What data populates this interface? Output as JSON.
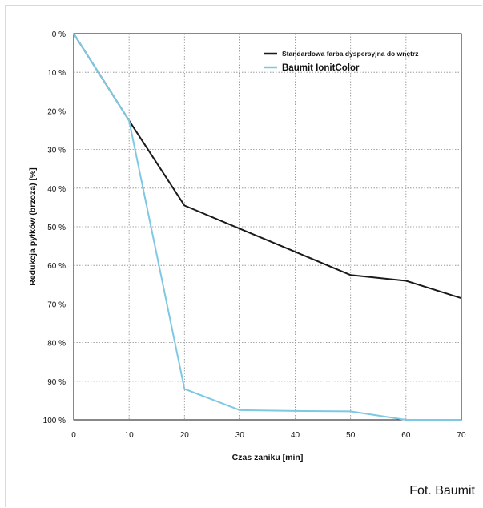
{
  "chart_data": {
    "type": "line",
    "title": "",
    "xlabel": "Czas zaniku [min]",
    "ylabel": "Redukcja pyłków (brzoza) [%]",
    "x_ticks": [
      "0",
      "10",
      "20",
      "30",
      "40",
      "50",
      "60",
      "70"
    ],
    "y_ticks": [
      "0 %",
      "10 %",
      "20 %",
      "30 %",
      "40 %",
      "50 %",
      "60 %",
      "70 %",
      "80 %",
      "90 %",
      "100 %"
    ],
    "xlim": [
      0,
      70
    ],
    "ylim": [
      0,
      100
    ],
    "y_inverted": true,
    "grid": "dotted",
    "legend_position": "top-right",
    "series": [
      {
        "name": "Standardowa farba dyspersyjna do wnętrz",
        "color": "#1a1a1a",
        "x": [
          0,
          10,
          20,
          30,
          40,
          50,
          60,
          70
        ],
        "y": [
          0,
          22.5,
          44.5,
          50.5,
          56.5,
          62.5,
          64,
          68.5
        ]
      },
      {
        "name": "Baumit IonitColor",
        "color": "#7ec8e3",
        "x": [
          0,
          8,
          10,
          20,
          30,
          40,
          50,
          60,
          70
        ],
        "y": [
          0,
          18,
          22.5,
          92,
          97.5,
          97.7,
          97.8,
          100,
          100
        ]
      }
    ]
  },
  "credit": "Fot. Baumit"
}
